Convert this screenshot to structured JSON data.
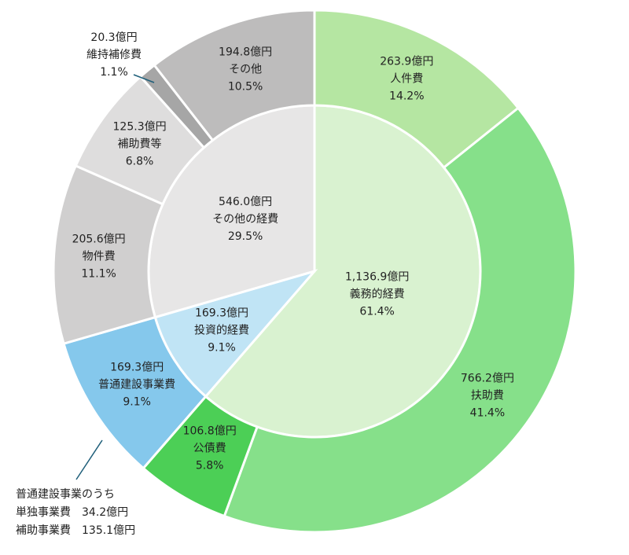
{
  "chart_data": {
    "type": "nested-pie",
    "unit_note": null,
    "rings": [
      {
        "name": "inner",
        "categories": [
          "義務的経費",
          "投資的経費",
          "その他の経費"
        ],
        "values": [
          1136.9,
          169.3,
          546.0
        ],
        "value_labels": [
          "1,136.9億円",
          "169.3億円",
          "546.0億円"
        ],
        "percents": [
          61.4,
          9.1,
          29.5
        ],
        "percent_labels": [
          "61.4%",
          "9.1%",
          "29.5%"
        ],
        "colors": [
          "#d9f2d0",
          "#c0e4f5",
          "#e7e6e6"
        ]
      },
      {
        "name": "outer",
        "categories": [
          "人件費",
          "扶助費",
          "公債費",
          "普通建設事業費",
          "物件費",
          "補助費等",
          "維持補修費",
          "その他"
        ],
        "values": [
          263.9,
          766.2,
          106.8,
          169.3,
          205.6,
          125.3,
          20.3,
          194.8
        ],
        "value_labels": [
          "263.9億円",
          "766.2億円",
          "106.8億円",
          "169.3億円",
          "205.6億円",
          "125.3億円",
          "20.3億円",
          "194.8億円"
        ],
        "percents": [
          14.2,
          41.4,
          5.8,
          9.1,
          11.1,
          6.8,
          1.1,
          10.5
        ],
        "percent_labels": [
          "14.2%",
          "41.4%",
          "5.8%",
          "9.1%",
          "11.1%",
          "6.8%",
          "1.1%",
          "10.5%"
        ],
        "colors": [
          "#b5e6a2",
          "#86e08a",
          "#4ccf56",
          "#85c8ec",
          "#d0cfcf",
          "#dedddd",
          "#a6a6a6",
          "#bdbcbc"
        ]
      }
    ],
    "note": [
      "普通建設事業のうち",
      "単独事業費　34.2億円",
      "補助事業費　135.1億円"
    ]
  }
}
